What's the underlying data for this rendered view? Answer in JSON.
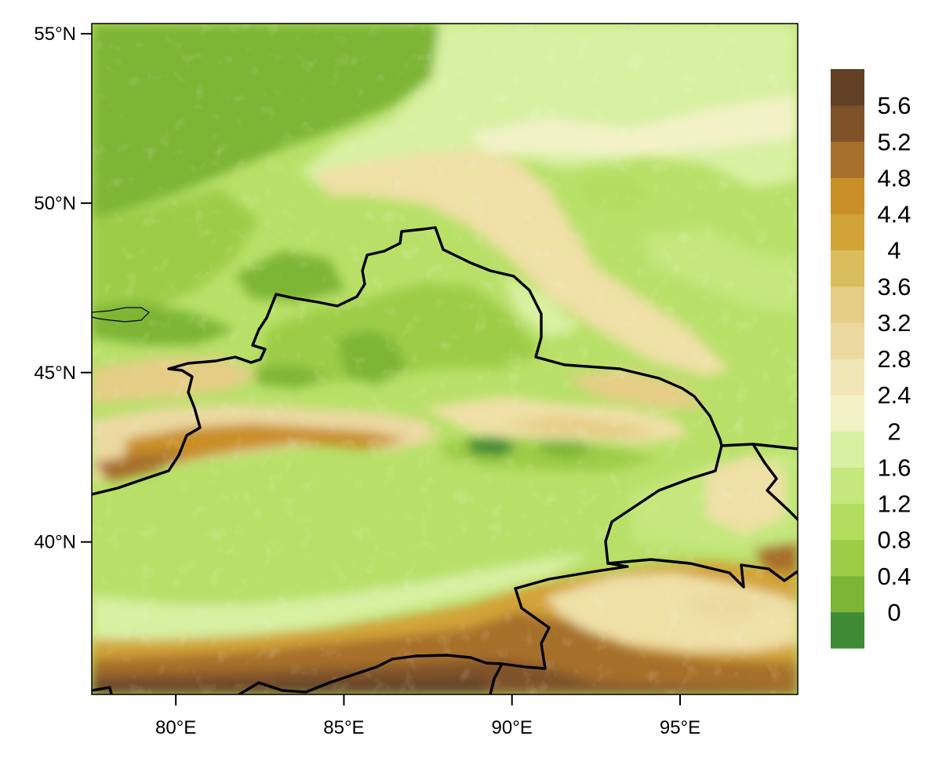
{
  "map": {
    "lon_range": [
      77.5,
      98.5
    ],
    "lat_range": [
      35.5,
      55.3
    ],
    "x_ticks": [
      {
        "value": 80,
        "label": "80°E"
      },
      {
        "value": 85,
        "label": "85°E"
      },
      {
        "value": 90,
        "label": "90°E"
      },
      {
        "value": 95,
        "label": "95°E"
      }
    ],
    "y_ticks": [
      {
        "value": 55,
        "label": "55°N"
      },
      {
        "value": 50,
        "label": "50°N"
      },
      {
        "value": 45,
        "label": "45°N"
      },
      {
        "value": 40,
        "label": "40°N"
      }
    ],
    "colors": {
      "border": "#000000",
      "lowland_dark": "#3e8a35",
      "steppe": "#7db536",
      "basin": "#b8e068",
      "plateau": "#efe0a6",
      "mountain": "#a7782c"
    }
  },
  "colorbar": {
    "labels": [
      "5.6",
      "5.2",
      "4.8",
      "4.4",
      "4",
      "3.6",
      "3.2",
      "2.8",
      "2.4",
      "2",
      "1.6",
      "1.2",
      "0.8",
      "0.4",
      "0"
    ],
    "colors": [
      "#3e8a35",
      "#7db536",
      "#9dcd46",
      "#b2dd5f",
      "#c5e77d",
      "#d8f0a1",
      "#f2f2c6",
      "#f1e6b6",
      "#ebd9a0",
      "#e5cd86",
      "#d9bd5c",
      "#d2a337",
      "#c98f27",
      "#a7702c",
      "#7f522a",
      "#614026"
    ]
  }
}
